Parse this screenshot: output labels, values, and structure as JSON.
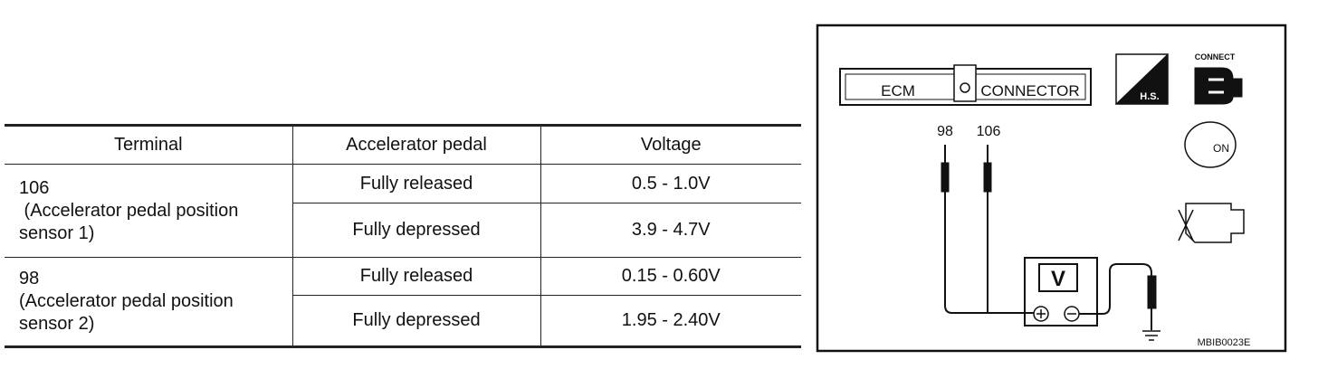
{
  "table": {
    "header": [
      "Terminal",
      "Accelerator pedal",
      "Voltage"
    ],
    "groups": [
      {
        "terminal": [
          "106",
          " (Accelerator pedal position",
          "sensor 1)"
        ],
        "rows": [
          [
            "Fully released",
            "0.5 - 1.0V"
          ],
          [
            "Fully depressed",
            "3.9 - 4.7V"
          ]
        ]
      },
      {
        "terminal": [
          "98",
          "(Accelerator pedal position",
          "sensor 2)"
        ],
        "rows": [
          [
            "Fully released",
            "0.15 - 0.60V"
          ],
          [
            "Fully depressed",
            "1.95 - 2.40V"
          ]
        ]
      }
    ]
  },
  "diagram": {
    "connector_left": "ECM",
    "connector_right": "CONNECTOR",
    "probe_labels": [
      "98",
      "106"
    ],
    "meter": "V",
    "icons": [
      "H.S.",
      "CONNECT",
      "ON"
    ],
    "code": "MBIB0023E"
  }
}
